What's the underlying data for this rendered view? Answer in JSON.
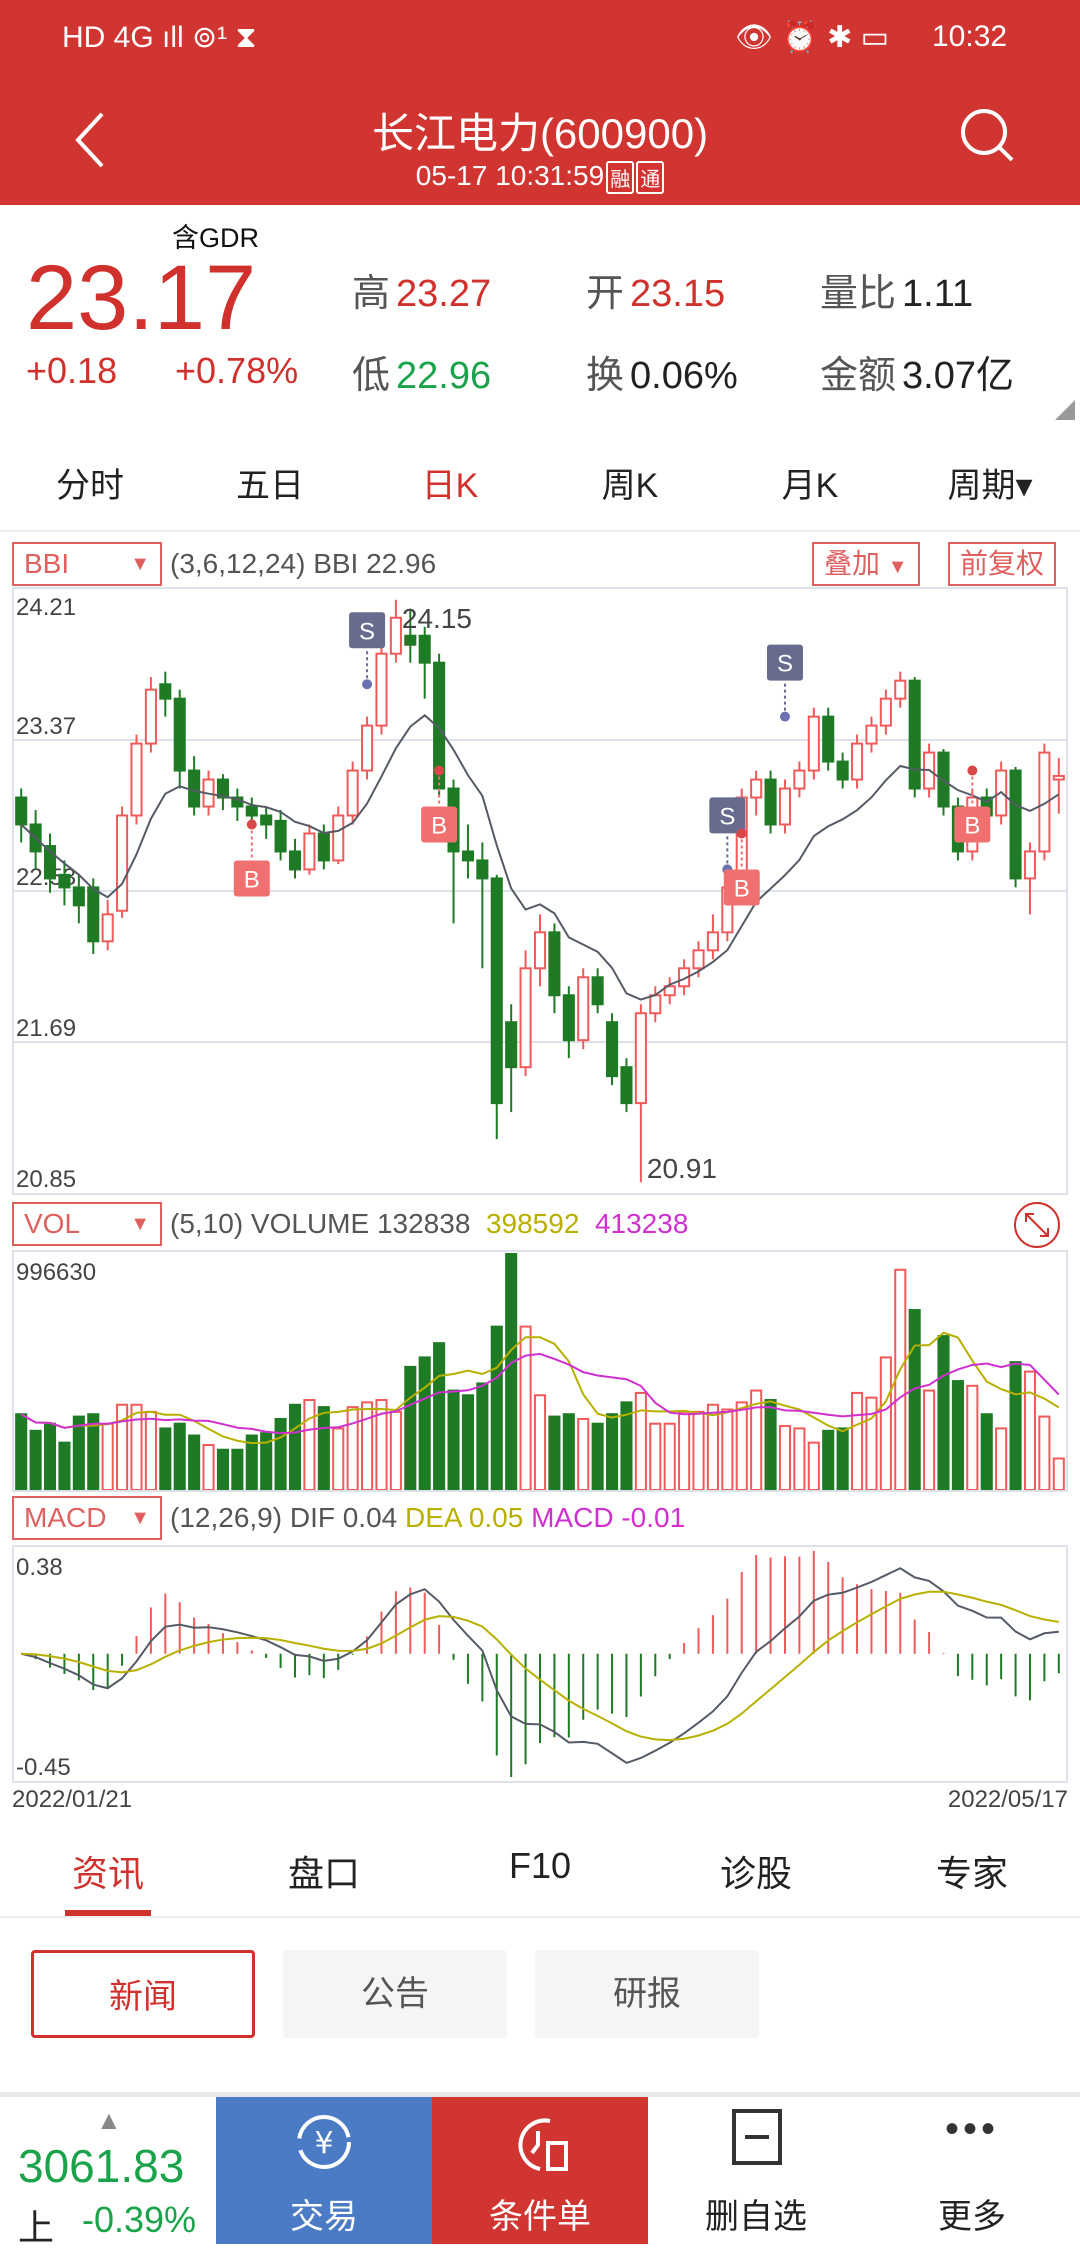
{
  "status_bar": {
    "left": "HD 4G ıll ⊚¹ ⧗",
    "time": "10:32",
    "right_icons": [
      "eye-icon",
      "alarm-icon",
      "bluetooth-icon",
      "battery-icon"
    ]
  },
  "header": {
    "title": "长江电力(600900)",
    "timestamp": "05-17 10:31:59",
    "tags": [
      "融",
      "通"
    ]
  },
  "quote": {
    "gdr": "含GDR",
    "price": "23.17",
    "change": "+0.18",
    "change_pct": "+0.78%",
    "items": [
      {
        "label": "高",
        "value": "23.27",
        "color": "#d0312d"
      },
      {
        "label": "开",
        "value": "23.15",
        "color": "#d0312d"
      },
      {
        "label": "量比",
        "value": "1.11",
        "color": "#222"
      },
      {
        "label": "低",
        "value": "22.96",
        "color": "#1aa34a"
      },
      {
        "label": "换",
        "value": "0.06%",
        "color": "#222"
      },
      {
        "label": "金额",
        "value": "3.07亿",
        "color": "#222"
      }
    ]
  },
  "period_tabs": [
    "分时",
    "五日",
    "日K",
    "周K",
    "月K",
    "周期▾"
  ],
  "active_period": 2,
  "bbi": {
    "selector": "BBI",
    "legend": "(3,6,12,24) BBI 22.96",
    "overlay": "叠加",
    "adjust": "前复权"
  },
  "vol": {
    "selector": "VOL",
    "params": "(5,10) VOLUME",
    "volume": "132838",
    "ma5": "398592",
    "ma10": "413238",
    "max_label": "996630"
  },
  "macd": {
    "selector": "MACD",
    "params": "(12,26,9) DIF",
    "dif": "0.04",
    "dea_label": "DEA",
    "dea": "0.05",
    "macd_label": "MACD",
    "macd": "-0.01",
    "top_label": "0.38",
    "bottom_label": "-0.45"
  },
  "dates": {
    "start": "2022/01/21",
    "end": "2022/05/17"
  },
  "colors": {
    "up": "#f05a5a",
    "down": "#1f7a25",
    "ma5": "#b8b000",
    "ma10": "#d030d0",
    "dif": "#555b66",
    "dea": "#b8b000",
    "brand": "#d13532",
    "buy": "#f07070",
    "sell": "#676b8e"
  },
  "chart_data": {
    "type": "candlestick",
    "ylim": [
      20.85,
      24.21
    ],
    "y_ticks": [
      "24.21",
      "23.37",
      "22.53",
      "21.69",
      "20.85"
    ],
    "high_label": "24.15",
    "low_label": "20.91",
    "ohlc": [
      [
        23.05,
        23.1,
        22.8,
        22.9
      ],
      [
        22.9,
        22.98,
        22.65,
        22.75
      ],
      [
        22.78,
        22.85,
        22.52,
        22.6
      ],
      [
        22.62,
        22.7,
        22.45,
        22.55
      ],
      [
        22.55,
        22.62,
        22.35,
        22.45
      ],
      [
        22.55,
        22.6,
        22.18,
        22.25
      ],
      [
        22.25,
        22.48,
        22.2,
        22.4
      ],
      [
        22.42,
        23.0,
        22.38,
        22.95
      ],
      [
        22.95,
        23.4,
        22.9,
        23.35
      ],
      [
        23.35,
        23.72,
        23.3,
        23.65
      ],
      [
        23.68,
        23.75,
        23.5,
        23.6
      ],
      [
        23.6,
        23.65,
        23.1,
        23.2
      ],
      [
        23.2,
        23.28,
        22.95,
        23.0
      ],
      [
        23.0,
        23.2,
        22.95,
        23.15
      ],
      [
        23.15,
        23.18,
        22.98,
        23.05
      ],
      [
        23.05,
        23.1,
        22.92,
        23.0
      ],
      [
        23.0,
        23.05,
        22.88,
        22.95
      ],
      [
        22.95,
        23.0,
        22.82,
        22.9
      ],
      [
        22.92,
        22.98,
        22.7,
        22.75
      ],
      [
        22.75,
        22.82,
        22.6,
        22.65
      ],
      [
        22.65,
        22.9,
        22.62,
        22.85
      ],
      [
        22.85,
        22.9,
        22.65,
        22.7
      ],
      [
        22.7,
        23.0,
        22.68,
        22.95
      ],
      [
        22.95,
        23.25,
        22.9,
        23.2
      ],
      [
        23.2,
        23.5,
        23.15,
        23.45
      ],
      [
        23.45,
        23.9,
        23.4,
        23.85
      ],
      [
        23.85,
        24.15,
        23.8,
        24.05
      ],
      [
        23.95,
        24.1,
        23.8,
        23.9
      ],
      [
        23.95,
        24.0,
        23.6,
        23.8
      ],
      [
        23.8,
        23.85,
        23.05,
        23.1
      ],
      [
        23.1,
        23.15,
        22.35,
        22.75
      ],
      [
        22.75,
        22.9,
        22.6,
        22.7
      ],
      [
        22.7,
        22.8,
        22.1,
        22.6
      ],
      [
        22.6,
        22.62,
        21.15,
        21.35
      ],
      [
        21.8,
        21.9,
        21.3,
        21.55
      ],
      [
        21.55,
        22.2,
        21.5,
        22.1
      ],
      [
        22.1,
        22.4,
        22.0,
        22.3
      ],
      [
        22.3,
        22.35,
        21.85,
        21.95
      ],
      [
        21.95,
        22.0,
        21.6,
        21.7
      ],
      [
        21.7,
        22.1,
        21.65,
        22.05
      ],
      [
        22.05,
        22.1,
        21.85,
        21.9
      ],
      [
        21.8,
        21.85,
        21.45,
        21.5
      ],
      [
        21.55,
        21.6,
        21.3,
        21.35
      ],
      [
        21.35,
        21.9,
        20.91,
        21.85
      ],
      [
        21.85,
        22.0,
        21.8,
        21.95
      ],
      [
        21.95,
        22.05,
        21.9,
        22.0
      ],
      [
        22.0,
        22.15,
        21.95,
        22.1
      ],
      [
        22.1,
        22.25,
        22.05,
        22.2
      ],
      [
        22.2,
        22.4,
        22.15,
        22.3
      ],
      [
        22.3,
        22.6,
        22.25,
        22.55
      ],
      [
        22.55,
        23.1,
        22.5,
        23.05
      ],
      [
        23.05,
        23.2,
        22.95,
        23.15
      ],
      [
        23.15,
        23.2,
        22.85,
        22.9
      ],
      [
        22.9,
        23.15,
        22.85,
        23.1
      ],
      [
        23.1,
        23.25,
        23.05,
        23.2
      ],
      [
        23.2,
        23.55,
        23.15,
        23.5
      ],
      [
        23.5,
        23.55,
        23.2,
        23.25
      ],
      [
        23.25,
        23.3,
        23.1,
        23.15
      ],
      [
        23.15,
        23.4,
        23.1,
        23.35
      ],
      [
        23.35,
        23.5,
        23.3,
        23.45
      ],
      [
        23.45,
        23.65,
        23.4,
        23.6
      ],
      [
        23.6,
        23.75,
        23.55,
        23.7
      ],
      [
        23.7,
        23.72,
        23.05,
        23.1
      ],
      [
        23.1,
        23.35,
        23.05,
        23.3
      ],
      [
        23.3,
        23.32,
        22.95,
        23.0
      ],
      [
        23.0,
        23.05,
        22.7,
        22.75
      ],
      [
        22.75,
        23.1,
        22.7,
        23.05
      ],
      [
        23.05,
        23.1,
        22.9,
        22.95
      ],
      [
        22.95,
        23.25,
        22.9,
        23.2
      ],
      [
        23.2,
        23.22,
        22.55,
        22.6
      ],
      [
        22.6,
        22.8,
        22.4,
        22.75
      ],
      [
        22.75,
        23.35,
        22.7,
        23.3
      ],
      [
        23.15,
        23.27,
        22.96,
        23.17
      ]
    ],
    "volume": [
      320000,
      250000,
      280000,
      200000,
      310000,
      320000,
      280000,
      360000,
      360000,
      330000,
      260000,
      280000,
      230000,
      190000,
      170000,
      170000,
      230000,
      240000,
      300000,
      360000,
      380000,
      350000,
      260000,
      350000,
      370000,
      380000,
      330000,
      520000,
      560000,
      620000,
      420000,
      400000,
      450000,
      690000,
      996630,
      690000,
      400000,
      310000,
      320000,
      300000,
      280000,
      320000,
      370000,
      410000,
      280000,
      280000,
      330000,
      330000,
      360000,
      340000,
      370000,
      420000,
      380000,
      270000,
      260000,
      200000,
      250000,
      260000,
      410000,
      390000,
      560000,
      930000,
      760000,
      420000,
      650000,
      460000,
      440000,
      320000,
      260000,
      540000,
      500000,
      310000,
      132838
    ],
    "volume_max": 996630,
    "macd_ylim": [
      -0.45,
      0.38
    ],
    "signals": [
      {
        "index": 16,
        "type": "B",
        "price": 22.9
      },
      {
        "index": 24,
        "type": "S",
        "price": 23.68
      },
      {
        "index": 29,
        "type": "B",
        "price": 23.2
      },
      {
        "index": 49,
        "type": "S",
        "price": 22.65
      },
      {
        "index": 50,
        "type": "B",
        "price": 22.85
      },
      {
        "index": 53,
        "type": "S",
        "price": 23.5
      },
      {
        "index": 66,
        "type": "B",
        "price": 23.2
      }
    ]
  },
  "info_tabs": [
    "资讯",
    "盘口",
    "F10",
    "诊股",
    "专家"
  ],
  "active_info_tab": 0,
  "sub_tabs": [
    "新闻",
    "公告",
    "研报"
  ],
  "bottom": {
    "index_value": "3061.83",
    "index_name": "上",
    "index_change": "-0.39%",
    "buttons": [
      "交易",
      "条件单",
      "删自选",
      "更多"
    ]
  }
}
